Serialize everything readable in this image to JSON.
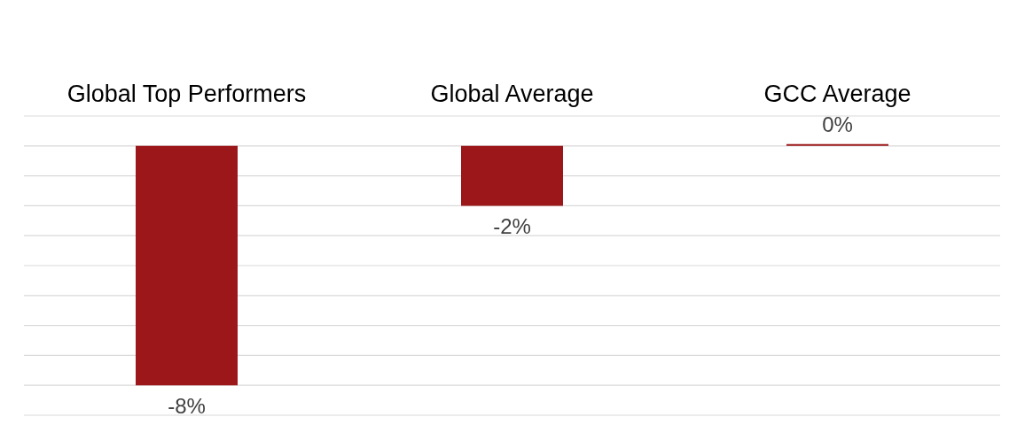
{
  "chart_data": {
    "type": "bar",
    "categories": [
      "Global Top Performers",
      "Global Average",
      "GCC Average"
    ],
    "values": [
      -8,
      -2,
      0
    ],
    "color": "#9b1719",
    "value_labels": [
      "-8%",
      "-2%",
      "0%"
    ],
    "ylim": [
      -9,
      1
    ],
    "yticks": [
      {
        "value": -9,
        "label": null
      },
      {
        "value": -8,
        "label": null
      },
      {
        "value": -7,
        "label": null
      },
      {
        "value": -6,
        "label": null
      },
      {
        "value": -5,
        "label": null
      },
      {
        "value": -4,
        "label": null
      },
      {
        "value": -3,
        "label": null
      },
      {
        "value": -2,
        "label": null
      },
      {
        "value": -1,
        "label": null
      },
      {
        "value": 0,
        "label": null
      },
      {
        "value": 1,
        "label": null
      }
    ],
    "grid": "y",
    "tick_labels": "x",
    "legend": false
  }
}
